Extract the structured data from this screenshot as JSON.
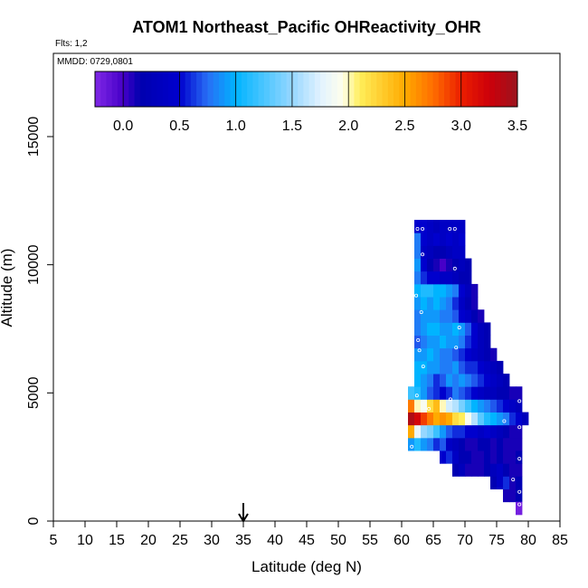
{
  "chart_data": {
    "type": "heatmap",
    "title": "ATOM1 Northeast_Pacific OHReactivity_OHR",
    "flights_label": "Flts: 1,2",
    "mmdd_label": "MMDD: 0729,0801",
    "xlabel": "Latitude (deg N)",
    "ylabel": "Altitude (m)",
    "xlim": [
      5,
      85
    ],
    "ylim": [
      0,
      17500
    ],
    "x_ticks": [
      "5",
      "10",
      "15",
      "20",
      "25",
      "30",
      "35",
      "40",
      "45",
      "50",
      "55",
      "60",
      "65",
      "70",
      "75",
      "80",
      "85"
    ],
    "y_ticks": [
      {
        "value": 0,
        "label": "0"
      },
      {
        "value": 5000,
        "label": "5000"
      },
      {
        "value": 10000,
        "label": "10000"
      },
      {
        "value": 15000,
        "label": "15000"
      }
    ],
    "colorbar": {
      "range": [
        -0.25,
        3.5
      ],
      "ticks": [
        "0.0",
        "0.5",
        "1.0",
        "1.5",
        "2.0",
        "2.5",
        "3.0",
        "3.5"
      ]
    },
    "marker_latitude": 35,
    "cell_size": {
      "lat": 1,
      "alt": 500
    },
    "rows": [
      {
        "alt": 1000,
        "lat_start": 76,
        "values": [
          0.1,
          0.1,
          0.2
        ]
      },
      {
        "alt": 500,
        "lat_start": 78,
        "values": [
          -0.2
        ]
      },
      {
        "alt": 1500,
        "lat_start": 74,
        "values": [
          0.2,
          0.4,
          0.6,
          0.1,
          0.2
        ]
      },
      {
        "alt": 2000,
        "lat_start": 68,
        "values": [
          0.2,
          0.3,
          0.1,
          0.1,
          0.1,
          0.2,
          0.3,
          0.4,
          0.2,
          0.1,
          0.1
        ]
      },
      {
        "alt": 2500,
        "lat_start": 66,
        "values": [
          0.5,
          0.6,
          0.4,
          0.2,
          0.2,
          0.1,
          0.1,
          0.2,
          0.1,
          0.2,
          0.1,
          0.1,
          0.2
        ]
      },
      {
        "alt": 3000,
        "lat_start": 61,
        "values": [
          0.9,
          1.1,
          0.9,
          0.8,
          0.6,
          0.7,
          0.4,
          0.3,
          0.2,
          0.1,
          0.1,
          0.2,
          0.2,
          0.1,
          0.2,
          0.1,
          0.1,
          0.1
        ]
      },
      {
        "alt": 3500,
        "lat_start": 61,
        "values": [
          2.5,
          1.8,
          1.5,
          1.4,
          1.2,
          0.9,
          0.7,
          0.6,
          0.6,
          0.5,
          0.5,
          0.4,
          0.5,
          0.4,
          0.3,
          0.2,
          0.1,
          0.1
        ]
      },
      {
        "alt": 4000,
        "lat_start": 61,
        "values": [
          3.4,
          3.2,
          2.9,
          2.7,
          2.5,
          2.6,
          2.5,
          2.2,
          2.1,
          1.9,
          1.6,
          1.3,
          1.1,
          1.0,
          0.9,
          0.8,
          0.6,
          0.5,
          0.3
        ]
      },
      {
        "alt": 4500,
        "lat_start": 61,
        "values": [
          2.7,
          2.0,
          1.9,
          2.2,
          2.4,
          2.0,
          1.7,
          1.6,
          1.4,
          1.2,
          1.0,
          0.9,
          0.8,
          0.7,
          0.6,
          0.5,
          0.4,
          0.3
        ]
      },
      {
        "alt": 5000,
        "lat_start": 61,
        "values": [
          1.2,
          1.1,
          0.9,
          0.7,
          0.6,
          0.5,
          0.6,
          0.8,
          0.7,
          0.6,
          0.5,
          0.4,
          0.3,
          0.3,
          0.2,
          0.2,
          0.1,
          0.1
        ]
      },
      {
        "alt": 5500,
        "lat_start": 62,
        "values": [
          1.0,
          0.9,
          0.8,
          0.6,
          0.7,
          0.9,
          0.8,
          0.9,
          0.8,
          0.7,
          0.6,
          0.5,
          0.4,
          0.3,
          0.2
        ]
      },
      {
        "alt": 6000,
        "lat_start": 62,
        "values": [
          1.0,
          1.0,
          0.9,
          0.9,
          0.8,
          0.8,
          0.9,
          0.7,
          0.6,
          0.6,
          0.5,
          0.4,
          0.3,
          0.2
        ]
      },
      {
        "alt": 6500,
        "lat_start": 62,
        "values": [
          0.9,
          0.9,
          1.0,
          0.9,
          0.8,
          0.8,
          0.7,
          0.6,
          0.5,
          0.4,
          0.3,
          0.2,
          0.1
        ]
      },
      {
        "alt": 7000,
        "lat_start": 62,
        "values": [
          0.7,
          0.8,
          0.9,
          0.9,
          1.0,
          0.9,
          0.9,
          0.8,
          0.6,
          0.5,
          0.3,
          0.2
        ]
      },
      {
        "alt": 7500,
        "lat_start": 62,
        "values": [
          0.8,
          0.9,
          1.0,
          1.0,
          0.9,
          0.9,
          1.0,
          0.9,
          0.7,
          0.5,
          0.3,
          0.2
        ]
      },
      {
        "alt": 8000,
        "lat_start": 62,
        "values": [
          0.8,
          0.9,
          0.9,
          0.9,
          0.8,
          0.8,
          0.7,
          0.5,
          0.4,
          0.2,
          0.1
        ]
      },
      {
        "alt": 8500,
        "lat_start": 62,
        "values": [
          0.9,
          1.0,
          0.9,
          1.0,
          0.9,
          0.8,
          0.6,
          0.4,
          0.2,
          0.1
        ]
      },
      {
        "alt": 9000,
        "lat_start": 62,
        "values": [
          1.0,
          1.1,
          1.1,
          1.0,
          1.0,
          0.9,
          0.8,
          0.5,
          0.3,
          0.1
        ]
      },
      {
        "alt": 9500,
        "lat_start": 62,
        "values": [
          0.8,
          0.6,
          0.5,
          0.5,
          0.4,
          0.4,
          0.3,
          0.2,
          0.2
        ]
      },
      {
        "alt": 10000,
        "lat_start": 62,
        "values": [
          0.9,
          0.5,
          0.2,
          0.1,
          0.0,
          0.1,
          0.2,
          0.3,
          0.2
        ]
      },
      {
        "alt": 10500,
        "lat_start": 62,
        "values": [
          0.8,
          0.4,
          0.3,
          0.2,
          0.2,
          0.3,
          0.4,
          0.4
        ]
      },
      {
        "alt": 11000,
        "lat_start": 62,
        "values": [
          0.8,
          0.5,
          0.4,
          0.5,
          0.4,
          0.5,
          0.4,
          0.5
        ]
      },
      {
        "alt": 11500,
        "lat_start": 62,
        "values": [
          0.5,
          0.5,
          0.4,
          0.3,
          0.4,
          0.4,
          0.4,
          0.4
        ]
      }
    ],
    "markers": [
      [
        62.5,
        11400
      ],
      [
        63.3,
        11400
      ],
      [
        67.6,
        11400
      ],
      [
        68.4,
        11400
      ],
      [
        63.3,
        10400
      ],
      [
        68.4,
        9850
      ],
      [
        62.3,
        8800
      ],
      [
        63.1,
        8150
      ],
      [
        69.1,
        7550
      ],
      [
        62.6,
        7060
      ],
      [
        62.8,
        6660
      ],
      [
        68.6,
        6770
      ],
      [
        63.4,
        6030
      ],
      [
        67.7,
        4750
      ],
      [
        62.4,
        4900
      ],
      [
        64.3,
        4380
      ],
      [
        78.6,
        4680
      ],
      [
        76.2,
        3900
      ],
      [
        78.6,
        3660
      ],
      [
        61.6,
        2900
      ],
      [
        78.6,
        2430
      ],
      [
        77.6,
        1620
      ],
      [
        78.6,
        1140
      ],
      [
        78.6,
        650
      ]
    ]
  }
}
